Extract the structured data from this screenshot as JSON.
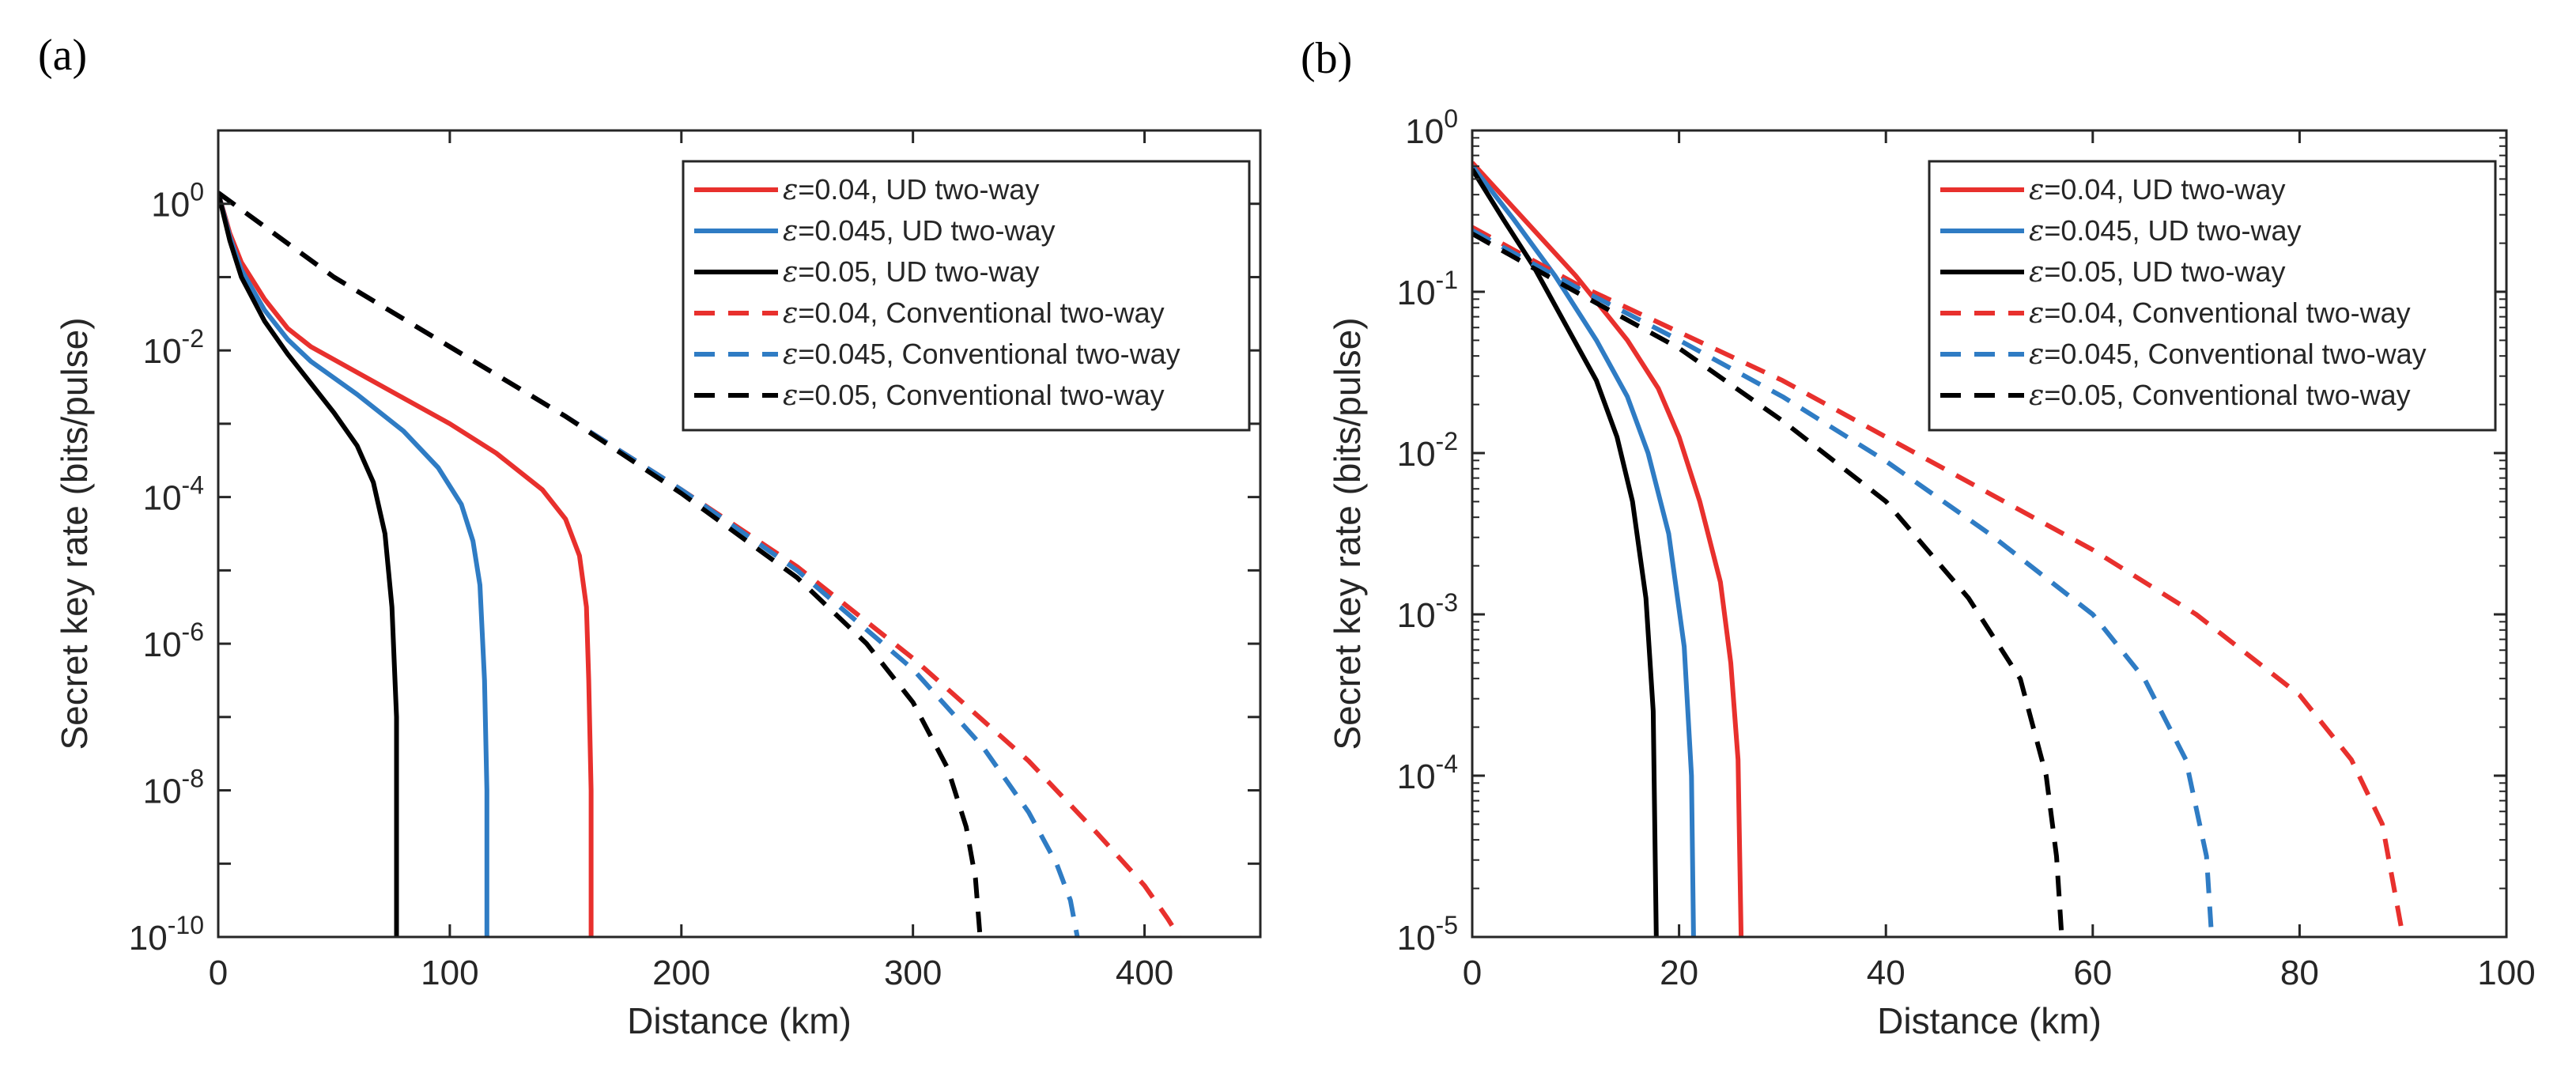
{
  "colors": {
    "red": "#e8302d",
    "blue": "#2f7cc4",
    "black": "#000000",
    "axis": "#262626"
  },
  "chart_data": [
    {
      "panel_label": "(a)",
      "type": "line",
      "yscale": "log",
      "xlabel": "Distance (km)",
      "ylabel": "Secret key rate (bits/pulse)",
      "xlim": [
        0,
        450
      ],
      "ylim_exp": [
        -10,
        1
      ],
      "xticks": [
        0,
        100,
        200,
        300,
        400
      ],
      "xtick_labels": [
        "0",
        "100",
        "200",
        "300",
        "400"
      ],
      "yticks_exp": [
        0,
        -2,
        -4,
        -6,
        -8,
        -10
      ],
      "ytick_base": "10",
      "ytick_exps": [
        "0",
        "-2",
        "-4",
        "-6",
        "-8",
        "-10"
      ],
      "legend_position": "top-right",
      "series": [
        {
          "name": "ε=0.04, UD two-way",
          "eps": "ε",
          "label": "=0.04, UD two-way",
          "color": "red",
          "dash": false,
          "points": [
            [
              0,
              0.15
            ],
            [
              5,
              -0.4
            ],
            [
              10,
              -0.8
            ],
            [
              20,
              -1.3
            ],
            [
              30,
              -1.7
            ],
            [
              40,
              -1.95
            ],
            [
              60,
              -2.3
            ],
            [
              80,
              -2.65
            ],
            [
              100,
              -3.0
            ],
            [
              120,
              -3.4
            ],
            [
              140,
              -3.9
            ],
            [
              150,
              -4.3
            ],
            [
              156,
              -4.8
            ],
            [
              159,
              -5.5
            ],
            [
              160,
              -6.5
            ],
            [
              161,
              -8
            ],
            [
              161,
              -10
            ]
          ]
        },
        {
          "name": "ε=0.045, UD two-way",
          "eps": "ε",
          "label": "=0.045, UD two-way",
          "color": "blue",
          "dash": false,
          "points": [
            [
              0,
              0.15
            ],
            [
              5,
              -0.45
            ],
            [
              10,
              -0.9
            ],
            [
              20,
              -1.45
            ],
            [
              30,
              -1.85
            ],
            [
              40,
              -2.15
            ],
            [
              60,
              -2.6
            ],
            [
              80,
              -3.1
            ],
            [
              95,
              -3.6
            ],
            [
              105,
              -4.1
            ],
            [
              110,
              -4.6
            ],
            [
              113,
              -5.2
            ],
            [
              115,
              -6.5
            ],
            [
              116,
              -8
            ],
            [
              116,
              -10
            ]
          ]
        },
        {
          "name": "ε=0.05, UD two-way",
          "eps": "ε",
          "label": "=0.05, UD two-way",
          "color": "black",
          "dash": false,
          "points": [
            [
              0,
              0.15
            ],
            [
              5,
              -0.5
            ],
            [
              10,
              -1.0
            ],
            [
              20,
              -1.6
            ],
            [
              30,
              -2.05
            ],
            [
              40,
              -2.45
            ],
            [
              50,
              -2.85
            ],
            [
              60,
              -3.3
            ],
            [
              67,
              -3.8
            ],
            [
              72,
              -4.5
            ],
            [
              75,
              -5.5
            ],
            [
              77,
              -7
            ],
            [
              77,
              -10
            ]
          ]
        },
        {
          "name": "ε=0.04, Conventional two-way",
          "eps": "ε",
          "label": "=0.04, Conventional two-way",
          "color": "red",
          "dash": true,
          "points": [
            [
              0,
              0.15
            ],
            [
              50,
              -1.0
            ],
            [
              100,
              -1.95
            ],
            [
              150,
              -2.9
            ],
            [
              200,
              -3.9
            ],
            [
              250,
              -4.95
            ],
            [
              300,
              -6.2
            ],
            [
              350,
              -7.6
            ],
            [
              380,
              -8.6
            ],
            [
              400,
              -9.3
            ],
            [
              410,
              -9.75
            ],
            [
              415,
              -10
            ]
          ]
        },
        {
          "name": "ε=0.045, Conventional two-way",
          "eps": "ε",
          "label": "=0.045, Conventional two-way",
          "color": "blue",
          "dash": true,
          "points": [
            [
              0,
              0.15
            ],
            [
              50,
              -1.0
            ],
            [
              100,
              -1.95
            ],
            [
              150,
              -2.9
            ],
            [
              200,
              -3.9
            ],
            [
              250,
              -5.0
            ],
            [
              300,
              -6.35
            ],
            [
              330,
              -7.4
            ],
            [
              350,
              -8.3
            ],
            [
              362,
              -9.0
            ],
            [
              368,
              -9.5
            ],
            [
              371,
              -10
            ]
          ]
        },
        {
          "name": "ε=0.05, Conventional two-way",
          "eps": "ε",
          "label": "=0.05, Conventional two-way",
          "color": "black",
          "dash": true,
          "points": [
            [
              0,
              0.15
            ],
            [
              50,
              -1.0
            ],
            [
              100,
              -1.95
            ],
            [
              150,
              -2.9
            ],
            [
              200,
              -3.95
            ],
            [
              250,
              -5.1
            ],
            [
              280,
              -6.0
            ],
            [
              300,
              -6.8
            ],
            [
              315,
              -7.7
            ],
            [
              323,
              -8.5
            ],
            [
              327,
              -9.2
            ],
            [
              329,
              -10
            ]
          ]
        }
      ]
    },
    {
      "panel_label": "(b)",
      "type": "line",
      "yscale": "log",
      "xlabel": "Distance (km)",
      "ylabel": "Secret key rate (bits/pulse)",
      "xlim": [
        0,
        100
      ],
      "ylim_exp": [
        -5,
        0
      ],
      "xticks": [
        0,
        20,
        40,
        60,
        80,
        100
      ],
      "xtick_labels": [
        "0",
        "20",
        "40",
        "60",
        "80",
        "100"
      ],
      "yticks_exp": [
        0,
        -1,
        -2,
        -3,
        -4,
        -5
      ],
      "ytick_base": "10",
      "ytick_exps": [
        "0",
        "-1",
        "-2",
        "-3",
        "-4",
        "-5"
      ],
      "legend_position": "top-right",
      "series": [
        {
          "name": "ε=0.04, UD two-way",
          "eps": "ε",
          "label": "=0.04, UD two-way",
          "color": "red",
          "dash": false,
          "points": [
            [
              0,
              -0.2
            ],
            [
              5,
              -0.55
            ],
            [
              10,
              -0.9
            ],
            [
              15,
              -1.3
            ],
            [
              18,
              -1.6
            ],
            [
              20,
              -1.9
            ],
            [
              22,
              -2.3
            ],
            [
              24,
              -2.8
            ],
            [
              25,
              -3.3
            ],
            [
              25.7,
              -3.9
            ],
            [
              26,
              -5
            ]
          ]
        },
        {
          "name": "ε=0.045, UD two-way",
          "eps": "ε",
          "label": "=0.045, UD two-way",
          "color": "blue",
          "dash": false,
          "points": [
            [
              0,
              -0.22
            ],
            [
              4,
              -0.55
            ],
            [
              8,
              -0.9
            ],
            [
              12,
              -1.3
            ],
            [
              15,
              -1.65
            ],
            [
              17,
              -2.0
            ],
            [
              19,
              -2.5
            ],
            [
              20.5,
              -3.2
            ],
            [
              21.2,
              -4
            ],
            [
              21.4,
              -5
            ]
          ]
        },
        {
          "name": "ε=0.05, UD two-way",
          "eps": "ε",
          "label": "=0.05, UD two-way",
          "color": "black",
          "dash": false,
          "points": [
            [
              0,
              -0.24
            ],
            [
              3,
              -0.55
            ],
            [
              6,
              -0.85
            ],
            [
              9,
              -1.2
            ],
            [
              12,
              -1.55
            ],
            [
              14,
              -1.9
            ],
            [
              15.5,
              -2.3
            ],
            [
              16.8,
              -2.9
            ],
            [
              17.5,
              -3.6
            ],
            [
              17.8,
              -5
            ]
          ]
        },
        {
          "name": "ε=0.04, Conventional two-way",
          "eps": "ε",
          "label": "=0.04, Conventional two-way",
          "color": "red",
          "dash": true,
          "points": [
            [
              0,
              -0.6
            ],
            [
              10,
              -0.95
            ],
            [
              20,
              -1.25
            ],
            [
              30,
              -1.55
            ],
            [
              40,
              -1.9
            ],
            [
              50,
              -2.25
            ],
            [
              60,
              -2.6
            ],
            [
              70,
              -3.0
            ],
            [
              80,
              -3.5
            ],
            [
              85,
              -3.9
            ],
            [
              88,
              -4.3
            ],
            [
              90,
              -5
            ]
          ]
        },
        {
          "name": "ε=0.045, Conventional two-way",
          "eps": "ε",
          "label": "=0.045, Conventional two-way",
          "color": "blue",
          "dash": true,
          "points": [
            [
              0,
              -0.62
            ],
            [
              10,
              -0.97
            ],
            [
              20,
              -1.3
            ],
            [
              30,
              -1.65
            ],
            [
              40,
              -2.05
            ],
            [
              50,
              -2.5
            ],
            [
              60,
              -3.0
            ],
            [
              65,
              -3.4
            ],
            [
              69,
              -3.9
            ],
            [
              71,
              -4.5
            ],
            [
              71.5,
              -5
            ]
          ]
        },
        {
          "name": "ε=0.05, Conventional two-way",
          "eps": "ε",
          "label": "=0.05, Conventional two-way",
          "color": "black",
          "dash": true,
          "points": [
            [
              0,
              -0.64
            ],
            [
              10,
              -1.0
            ],
            [
              20,
              -1.35
            ],
            [
              30,
              -1.8
            ],
            [
              40,
              -2.3
            ],
            [
              48,
              -2.9
            ],
            [
              53,
              -3.4
            ],
            [
              55.5,
              -4.0
            ],
            [
              56.5,
              -4.5
            ],
            [
              57,
              -5
            ]
          ]
        }
      ]
    }
  ]
}
